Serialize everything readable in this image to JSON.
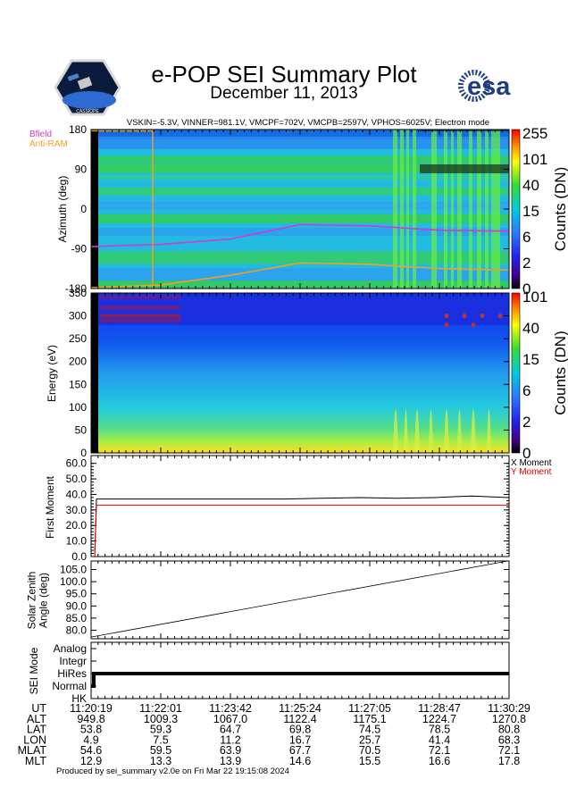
{
  "header": {
    "title": "e-POP SEI Summary Plot",
    "date": "December 11, 2013",
    "params": "VSKIN=-5.3V, VINNER=981.1V, VMCPF=702V, VMCPB=2597V, VPHOS=6025V; Electron mode",
    "footer": "Produced by sei_summary v2.0e on Fri Mar 22 19:15:08 2024",
    "logo_left": "e-POP satellite mission badge",
    "logo_right": "esa"
  },
  "colors": {
    "bfield": "#d23ad2",
    "antiram": "#f2a020",
    "x_moment": "#000000",
    "y_moment": "#e00000"
  },
  "chart_data": [
    {
      "type": "heatmap",
      "ylabel": "Azimuth (deg)",
      "yticks": [
        180,
        90,
        0,
        -90,
        -180
      ],
      "ylim": [
        -180,
        180
      ],
      "colorbar": {
        "label": "Counts (DN)",
        "ticks": [
          "255",
          "101",
          "40",
          "15",
          "6",
          "2",
          "0"
        ]
      },
      "series": [
        {
          "name": "Bfield",
          "x": [
            "11:20:19",
            "11:22:01",
            "11:23:42",
            "11:25:24",
            "11:27:05",
            "11:28:47",
            "11:30:29"
          ],
          "values": [
            -85,
            -80,
            -68,
            -35,
            -38,
            -48,
            -50
          ]
        },
        {
          "name": "Anti-RAM",
          "x": [
            "11:20:19",
            "11:22:01",
            "11:23:42",
            "11:25:24",
            "11:27:05",
            "11:28:47",
            "11:30:29"
          ],
          "values": [
            -178,
            -172,
            -150,
            -122,
            -125,
            -135,
            -138
          ]
        }
      ]
    },
    {
      "type": "heatmap",
      "ylabel": "Energy (eV)",
      "yticks": [
        350,
        300,
        250,
        200,
        150,
        100,
        50,
        0
      ],
      "ylim": [
        0,
        350
      ],
      "colorbar": {
        "label": "Counts (DN)",
        "ticks": [
          "101",
          "40",
          "15",
          "6",
          "2",
          "0"
        ]
      }
    },
    {
      "type": "line",
      "ylabel": "First Moment",
      "yticks": [
        "60.0",
        "50.0",
        "40.0",
        "30.0",
        "20.0",
        "10.0",
        "0.0"
      ],
      "ylim": [
        0,
        65
      ],
      "legend": [
        "X Moment",
        "Y Moment"
      ],
      "series": [
        {
          "name": "X Moment",
          "values": [
            0,
            37,
            37,
            37,
            37,
            37,
            37,
            37.5,
            38,
            37.5,
            38,
            39,
            38
          ]
        },
        {
          "name": "Y Moment",
          "values": [
            0,
            33,
            33,
            33,
            33,
            33,
            33,
            33,
            33,
            33,
            33,
            33,
            33
          ]
        }
      ]
    },
    {
      "type": "line",
      "ylabel": "Solar Zenith\nAngle (deg)",
      "yticks": [
        "105.0",
        "100.0",
        "95.0",
        "90.0",
        "85.0",
        "80.0"
      ],
      "ylim": [
        76.5,
        108.5
      ],
      "series": [
        {
          "name": "",
          "values": [
            77.2,
            108.6
          ]
        }
      ]
    },
    {
      "type": "line",
      "ylabel": "SEI Mode",
      "yticks": [
        "Analog",
        "Integr",
        "HiRes",
        "Normal",
        "HK"
      ],
      "series": [
        {
          "name": "",
          "values": [
            "Normal",
            "HiRes",
            "HiRes"
          ]
        }
      ]
    }
  ],
  "time_table": {
    "rows": [
      {
        "label": "UT",
        "values": [
          "11:20:19",
          "11:22:01",
          "11:23:42",
          "11:25:24",
          "11:27:05",
          "11:28:47",
          "11:30:29"
        ]
      },
      {
        "label": "ALT",
        "values": [
          "949.8",
          "1009.3",
          "1067.0",
          "1122.4",
          "1175.1",
          "1224.7",
          "1270.8"
        ]
      },
      {
        "label": "LAT",
        "values": [
          "53.8",
          "59.3",
          "64.7",
          "69.8",
          "74.5",
          "78.5",
          "80.8"
        ]
      },
      {
        "label": "LON",
        "values": [
          "4.9",
          "7.5",
          "11.2",
          "16.7",
          "25.7",
          "41.4",
          "68.3"
        ]
      },
      {
        "label": "MLAT",
        "values": [
          "54.6",
          "59.5",
          "63.9",
          "67.7",
          "70.5",
          "72.1",
          "72.1"
        ]
      },
      {
        "label": "MLT",
        "values": [
          "12.9",
          "13.3",
          "13.9",
          "14.6",
          "15.5",
          "16.6",
          "17.8"
        ]
      }
    ]
  }
}
